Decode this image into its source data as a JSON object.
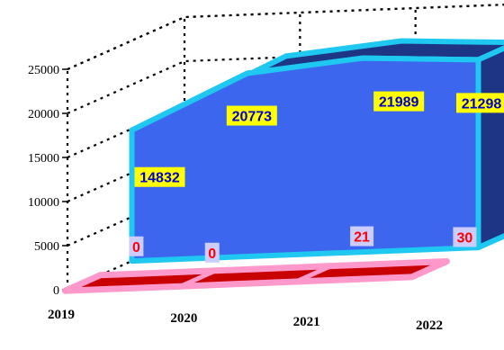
{
  "chart_data": {
    "type": "area",
    "categories": [
      "2019",
      "2020",
      "2021",
      "2022"
    ],
    "series": [
      {
        "values": [
          14832,
          20773,
          21989,
          21298
        ]
      },
      {
        "values": [
          0,
          0,
          21,
          30
        ]
      }
    ],
    "ylim": [
      0,
      25000
    ],
    "yticks": [
      "0",
      "5000",
      "10000",
      "15000",
      "20000",
      "25000"
    ],
    "title": "",
    "xlabel": "",
    "ylabel": "",
    "grid": true,
    "legend": "none",
    "colors": {
      "series1_fill": "#3d66ee",
      "series1_side": "#1e3484",
      "series1_edge": "#1ec8f0",
      "series2_fill": "#c80000",
      "series2_edge": "#ff99cc",
      "label1_bg": "#ffff00",
      "label1_text": "#0000cc",
      "label2_bg": "#ccccff",
      "label2_text": "#ff0000"
    }
  }
}
